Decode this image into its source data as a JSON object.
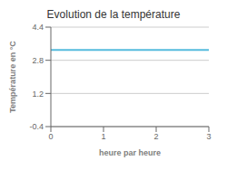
{
  "chart_data": {
    "type": "line",
    "title": "Evolution de la température",
    "x_label": "heure par heure",
    "y_label": "Température en °C",
    "x": [
      0,
      3
    ],
    "series": [
      {
        "name": "Température",
        "color": "#55bbdd",
        "values": [
          3.3,
          3.3
        ]
      }
    ],
    "xlim": [
      0,
      3
    ],
    "xticks": [
      0,
      1,
      2,
      3
    ],
    "ylim": [
      -0.4,
      4.4
    ],
    "yticks": [
      -0.4,
      1.2,
      2.8,
      4.4
    ],
    "grid": true
  }
}
